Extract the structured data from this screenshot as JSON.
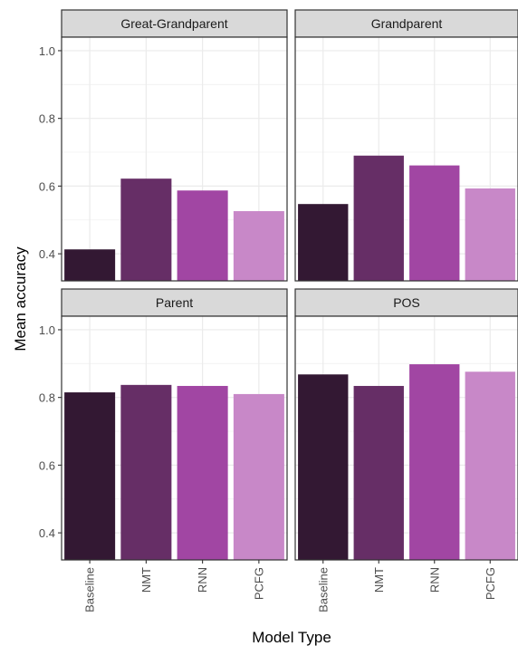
{
  "chart_data": {
    "type": "bar",
    "layout": "facet_wrap 2x2",
    "xlabel": "Model Type",
    "ylabel": "Mean accuracy",
    "categories": [
      "Baseline",
      "NMT",
      "RNN",
      "PCFG"
    ],
    "ylim": [
      0.32,
      1.04
    ],
    "yticks": [
      0.4,
      0.6,
      0.8,
      1.0
    ],
    "ytick_labels": [
      "0.4",
      "0.6",
      "0.8",
      "1.0"
    ],
    "grid": true,
    "colors": [
      "#331833",
      "#662e66",
      "#a146a3",
      "#c888c8"
    ],
    "panel_strip_color": "#d9d9d9",
    "panels": [
      {
        "title": "Great-Grandparent",
        "values": [
          0.413,
          0.622,
          0.587,
          0.526
        ]
      },
      {
        "title": "Grandparent",
        "values": [
          0.547,
          0.69,
          0.661,
          0.593
        ]
      },
      {
        "title": "Parent",
        "values": [
          0.815,
          0.837,
          0.834,
          0.81
        ]
      },
      {
        "title": "POS",
        "values": [
          0.868,
          0.834,
          0.898,
          0.876
        ]
      }
    ]
  }
}
